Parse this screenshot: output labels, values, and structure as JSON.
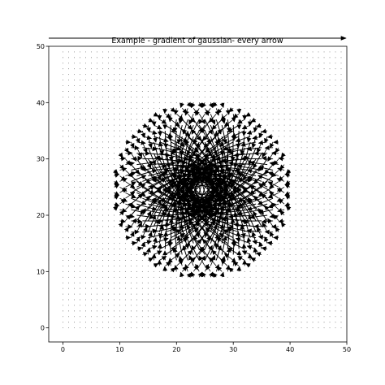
{
  "chart_data": {
    "type": "quiver",
    "title": "Example - gradient of gaussian- every arrow",
    "xlabel": "",
    "ylabel": "",
    "xlim": [
      -2.5,
      50
    ],
    "ylim": [
      -2.5,
      50
    ],
    "xticks": [
      0,
      10,
      20,
      30,
      40,
      50
    ],
    "yticks": [
      0,
      10,
      20,
      30,
      40,
      50
    ],
    "grid": false,
    "field": {
      "description": "Field drawn at every integer grid point 0..49 in x and y; arrows converge toward the centre, with the long strokes concentrated in a ring around it",
      "grid_x_range": [
        0,
        49
      ],
      "grid_y_range": [
        0,
        49
      ],
      "center": [
        24.5,
        24.5
      ]
    },
    "overlay_arrow": {
      "description": "horizontal arrow above the plot area pointing right"
    },
    "colors": {
      "arrows": "#000000",
      "axes": "#000000",
      "background": "#ffffff"
    }
  }
}
